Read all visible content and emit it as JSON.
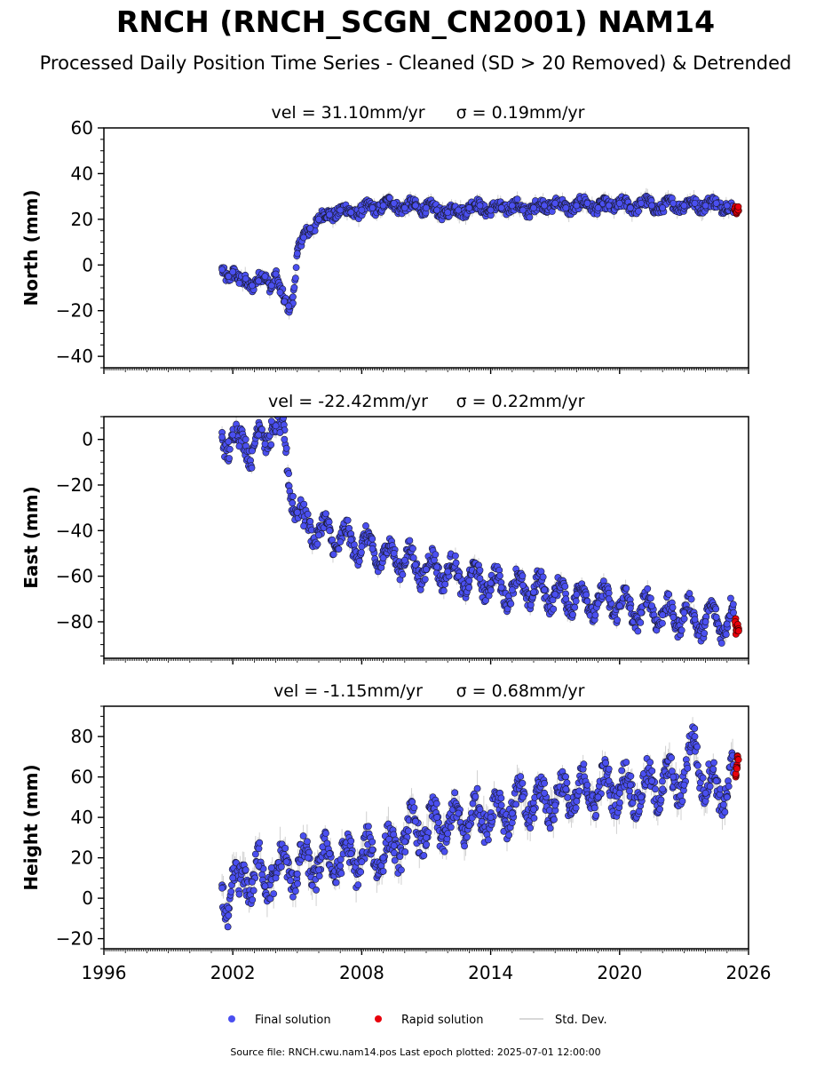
{
  "title": "RNCH (RNCH_SCGN_CN2001) NAM14",
  "subtitle": "Processed Daily Position Time Series - Cleaned (SD > 20 Removed) & Detrended",
  "footer": "Source file: RNCH.cwu.nam14.pos  Last epoch plotted: 2025-07-01 12:00:00",
  "legend": [
    {
      "label": "Final solution",
      "color": "#4a4ff0",
      "marker": "circle"
    },
    {
      "label": "Rapid solution",
      "color": "#e8000b",
      "marker": "circle"
    },
    {
      "label": "Std. Dev.",
      "color": "#cccccc",
      "marker": "line"
    }
  ],
  "colors": {
    "final": "#4a4ff0",
    "rapid": "#e8000b",
    "stddev": "#bdbdbd",
    "edge": "#1a1a2e"
  },
  "chart_data": [
    {
      "type": "scatter",
      "panel": "north",
      "title_vel": "vel = 31.10mm/yr",
      "title_sigma": "σ = 0.19mm/yr",
      "ylabel": "North (mm)",
      "xlim": [
        1996,
        2026
      ],
      "ylim": [
        -45,
        60
      ],
      "yticks": [
        -40,
        -20,
        0,
        20,
        40,
        60
      ],
      "xticks": [
        1996,
        2002,
        2008,
        2014,
        2020,
        2026
      ],
      "grid": false,
      "series": [
        {
          "name": "Final solution",
          "x": [
            2001.5,
            2001.8,
            2002.0,
            2002.3,
            2002.6,
            2002.9,
            2003.2,
            2003.5,
            2003.8,
            2004.0,
            2004.2,
            2004.4,
            2004.6,
            2004.8,
            2005.0,
            2005.3,
            2005.6,
            2006.0,
            2006.5,
            2007.0,
            2007.5,
            2008.0,
            2008.5,
            2009.0,
            2009.5,
            2010.0,
            2010.5,
            2011.0,
            2011.5,
            2012.0,
            2012.5,
            2013.0,
            2013.5,
            2014.0,
            2014.5,
            2015.0,
            2015.5,
            2016.0,
            2016.5,
            2017.0,
            2017.5,
            2018.0,
            2018.5,
            2019.0,
            2019.5,
            2020.0,
            2020.5,
            2021.0,
            2021.5,
            2022.0,
            2022.5,
            2023.0,
            2023.5,
            2024.0,
            2024.5,
            2025.0,
            2025.3
          ],
          "y": [
            -2,
            -5,
            -3,
            -8,
            -6,
            -9,
            -7,
            -5,
            -9,
            -4,
            -12,
            -16,
            -18,
            -14,
            5,
            12,
            16,
            20,
            22,
            24,
            23,
            24,
            25,
            26,
            27,
            25,
            26,
            25,
            24,
            23,
            24,
            25,
            26,
            24,
            25,
            26,
            24,
            25,
            26,
            27,
            25,
            26,
            27,
            25,
            26,
            27,
            25,
            27,
            26,
            25,
            27,
            26,
            27,
            26,
            27,
            26,
            23
          ]
        },
        {
          "name": "Rapid solution",
          "x": [
            2025.4,
            2025.45,
            2025.5
          ],
          "y": [
            24,
            22,
            25
          ]
        }
      ]
    },
    {
      "type": "scatter",
      "panel": "east",
      "title_vel": "vel = -22.42mm/yr",
      "title_sigma": "σ = 0.22mm/yr",
      "ylabel": "East (mm)",
      "xlim": [
        1996,
        2026
      ],
      "ylim": [
        -96,
        10
      ],
      "yticks": [
        -80,
        -60,
        -40,
        -20,
        0
      ],
      "xticks": [
        1996,
        2002,
        2008,
        2014,
        2020,
        2026
      ],
      "grid": false,
      "series": [
        {
          "name": "Final solution",
          "x": [
            2001.5,
            2001.8,
            2002.0,
            2002.3,
            2002.6,
            2002.9,
            2003.2,
            2003.5,
            2003.8,
            2004.0,
            2004.2,
            2004.4,
            2004.6,
            2004.8,
            2005.0,
            2005.3,
            2005.6,
            2006.0,
            2006.5,
            2007.0,
            2007.5,
            2008.0,
            2008.5,
            2009.0,
            2009.5,
            2010.0,
            2010.5,
            2011.0,
            2011.5,
            2012.0,
            2012.5,
            2013.0,
            2013.5,
            2014.0,
            2014.5,
            2015.0,
            2015.5,
            2016.0,
            2016.5,
            2017.0,
            2017.5,
            2018.0,
            2018.5,
            2019.0,
            2019.5,
            2020.0,
            2020.5,
            2021.0,
            2021.5,
            2022.0,
            2022.5,
            2023.0,
            2023.5,
            2024.0,
            2024.5,
            2025.0,
            2025.3
          ],
          "y": [
            1,
            -1,
            2,
            -3,
            0,
            -5,
            2,
            -2,
            8,
            6,
            3,
            0,
            -15,
            -25,
            -32,
            -38,
            -36,
            -42,
            -40,
            -45,
            -44,
            -47,
            -48,
            -52,
            -50,
            -53,
            -55,
            -57,
            -56,
            -58,
            -60,
            -62,
            -61,
            -63,
            -65,
            -66,
            -64,
            -67,
            -66,
            -68,
            -70,
            -68,
            -71,
            -72,
            -70,
            -73,
            -74,
            -76,
            -73,
            -77,
            -78,
            -76,
            -79,
            -80,
            -78,
            -81,
            -76
          ]
        },
        {
          "name": "Rapid solution",
          "x": [
            2025.4,
            2025.45,
            2025.5
          ],
          "y": [
            -80,
            -85,
            -83
          ]
        }
      ]
    },
    {
      "type": "scatter",
      "panel": "height",
      "title_vel": "vel = -1.15mm/yr",
      "title_sigma": "σ = 0.68mm/yr",
      "ylabel": "Height (mm)",
      "xlim": [
        1996,
        2026
      ],
      "ylim": [
        -25,
        95
      ],
      "yticks": [
        -20,
        0,
        20,
        40,
        60,
        80
      ],
      "xticks": [
        1996,
        2002,
        2008,
        2014,
        2020,
        2026
      ],
      "grid": false,
      "series": [
        {
          "name": "Final solution",
          "x": [
            2001.5,
            2001.8,
            2002.0,
            2002.3,
            2002.6,
            2002.9,
            2003.2,
            2003.5,
            2003.8,
            2004.0,
            2004.5,
            2005.0,
            2005.5,
            2006.0,
            2006.5,
            2007.0,
            2007.5,
            2008.0,
            2008.5,
            2009.0,
            2009.5,
            2010.0,
            2010.5,
            2011.0,
            2011.5,
            2012.0,
            2012.5,
            2013.0,
            2013.5,
            2014.0,
            2014.5,
            2015.0,
            2015.5,
            2016.0,
            2016.5,
            2017.0,
            2017.5,
            2018.0,
            2018.5,
            2019.0,
            2019.5,
            2020.0,
            2020.5,
            2021.0,
            2021.5,
            2022.0,
            2022.5,
            2023.0,
            2023.5,
            2024.0,
            2024.5,
            2025.0,
            2025.3
          ],
          "y": [
            5,
            -5,
            10,
            2,
            14,
            8,
            16,
            6,
            15,
            10,
            18,
            12,
            20,
            14,
            22,
            16,
            22,
            18,
            24,
            20,
            26,
            28,
            38,
            30,
            40,
            32,
            42,
            36,
            44,
            40,
            46,
            42,
            50,
            44,
            52,
            46,
            54,
            48,
            56,
            50,
            58,
            52,
            56,
            50,
            58,
            54,
            60,
            56,
            80,
            52,
            58,
            50,
            62
          ]
        },
        {
          "name": "Rapid solution",
          "x": [
            2025.4,
            2025.45,
            2025.5
          ],
          "y": [
            60,
            66,
            70
          ]
        }
      ]
    }
  ]
}
